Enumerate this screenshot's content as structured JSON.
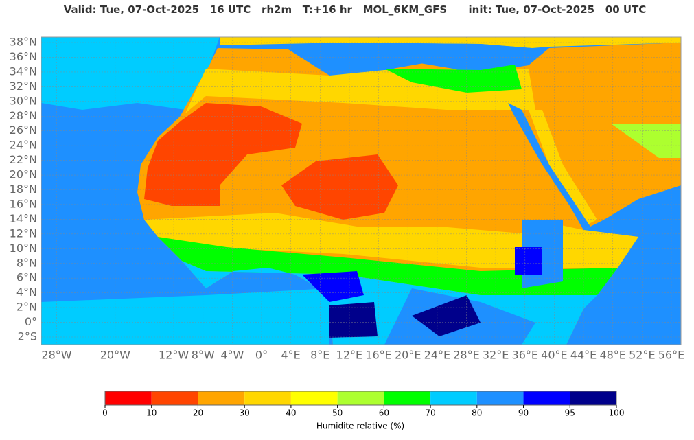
{
  "header": {
    "title": "Valid: Tue, 07-Oct-2025   16 UTC   rh2m   T:+16 hr   MOL_6KM_GFS      init: Tue, 07-Oct-2025   00 UTC"
  },
  "map": {
    "lat_ticks": [
      {
        "value": 38,
        "label": "38°N"
      },
      {
        "value": 36,
        "label": "36°N"
      },
      {
        "value": 34,
        "label": "34°N"
      },
      {
        "value": 32,
        "label": "32°N"
      },
      {
        "value": 30,
        "label": "30°N"
      },
      {
        "value": 28,
        "label": "28°N"
      },
      {
        "value": 26,
        "label": "26°N"
      },
      {
        "value": 24,
        "label": "24°N"
      },
      {
        "value": 22,
        "label": "22°N"
      },
      {
        "value": 20,
        "label": "20°N"
      },
      {
        "value": 18,
        "label": "18°N"
      },
      {
        "value": 16,
        "label": "16°N"
      },
      {
        "value": 14,
        "label": "14°N"
      },
      {
        "value": 12,
        "label": "12°N"
      },
      {
        "value": 10,
        "label": "10°N"
      },
      {
        "value": 8,
        "label": "8°N"
      },
      {
        "value": 6,
        "label": "6°N"
      },
      {
        "value": 4,
        "label": "4°N"
      },
      {
        "value": 2,
        "label": "2°N"
      },
      {
        "value": 0,
        "label": "0°"
      },
      {
        "value": -2,
        "label": "2°S"
      }
    ],
    "lon_ticks": [
      {
        "value": -28,
        "label": "28°W"
      },
      {
        "value": -20,
        "label": "20°W"
      },
      {
        "value": -12,
        "label": "12°W"
      },
      {
        "value": -8,
        "label": "8°W"
      },
      {
        "value": -4,
        "label": "4°W"
      },
      {
        "value": 0,
        "label": "0°"
      },
      {
        "value": 4,
        "label": "4°E"
      },
      {
        "value": 8,
        "label": "8°E"
      },
      {
        "value": 12,
        "label": "12°E"
      },
      {
        "value": 16,
        "label": "16°E"
      },
      {
        "value": 20,
        "label": "20°E"
      },
      {
        "value": 24,
        "label": "24°E"
      },
      {
        "value": 28,
        "label": "28°E"
      },
      {
        "value": 32,
        "label": "32°E"
      },
      {
        "value": 36,
        "label": "36°E"
      },
      {
        "value": 40,
        "label": "40°E"
      },
      {
        "value": 44,
        "label": "44°E"
      },
      {
        "value": 48,
        "label": "48°E"
      },
      {
        "value": 52,
        "label": "52°E"
      },
      {
        "value": 56,
        "label": "56°E"
      }
    ],
    "grid": true
  },
  "colorbar": {
    "ticks": [
      0,
      10,
      20,
      30,
      40,
      50,
      60,
      70,
      80,
      90,
      95,
      100
    ],
    "colors": [
      "#ff0000",
      "#ff4500",
      "#ffa500",
      "#ffd700",
      "#ffff00",
      "#adff2f",
      "#00ff00",
      "#00ccff",
      "#1e90ff",
      "#0000ff",
      "#00008b"
    ],
    "label": "Humidite relative (%)"
  }
}
